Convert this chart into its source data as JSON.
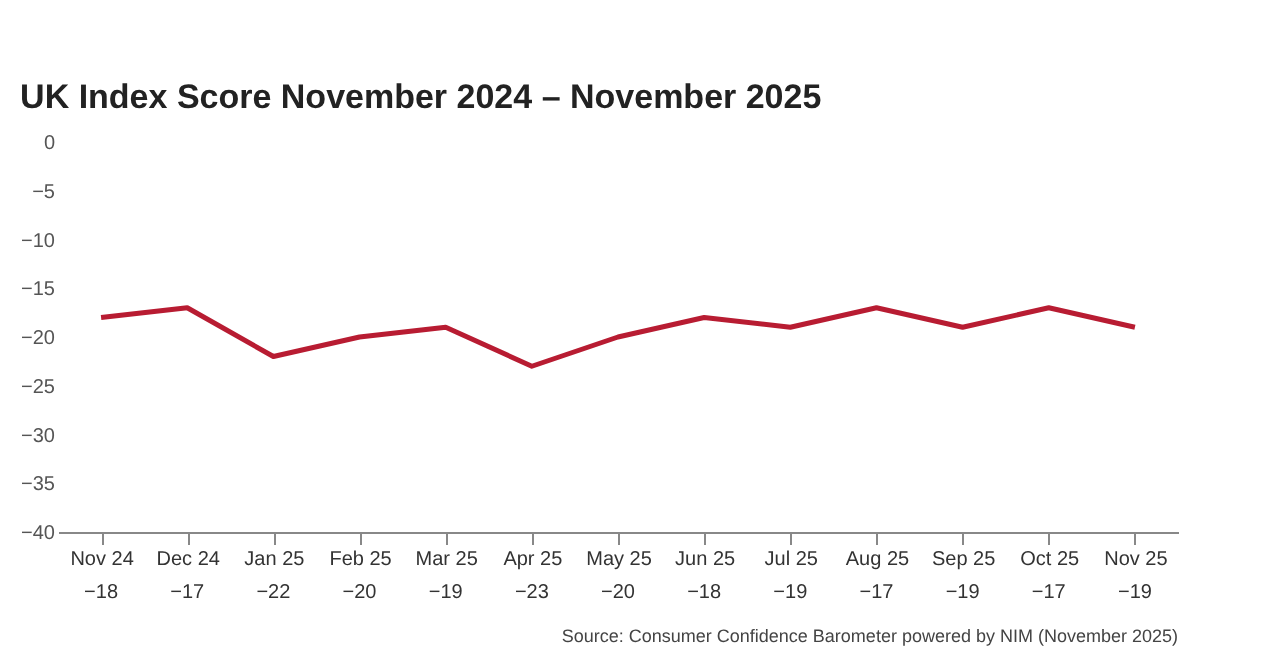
{
  "chart_data": {
    "type": "line",
    "title": "UK Index Score November 2024 – November 2025",
    "categories": [
      "Nov 24",
      "Dec 24",
      "Jan 25",
      "Feb 25",
      "Mar 25",
      "Apr 25",
      "May 25",
      "Jun 25",
      "Jul 25",
      "Aug 25",
      "Sep 25",
      "Oct 25",
      "Nov 25"
    ],
    "series": [
      {
        "color": "#b81c32",
        "values": [
          -18,
          -17,
          -22,
          -20,
          -19,
          -23,
          -20,
          -18,
          -19,
          -17,
          -19,
          -17,
          -19
        ]
      }
    ],
    "ylim": [
      -40,
      0
    ],
    "yticks": [
      0,
      -5,
      -10,
      -15,
      -20,
      -25,
      -30,
      -35,
      -40
    ],
    "grid": false,
    "marker": "none",
    "line_style": "solid",
    "data_labels": true,
    "annotations": [
      "Source: Consumer Confidence Barometer powered by NIM (November 2025)"
    ]
  }
}
